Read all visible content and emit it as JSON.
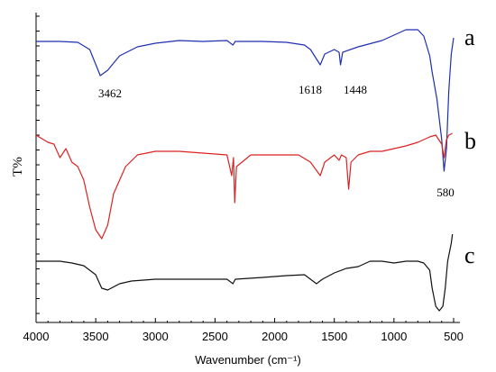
{
  "chart_data": {
    "type": "line",
    "title": "",
    "xlabel": "Wavenumber (cm⁻¹)",
    "ylabel": "T%",
    "xlim": [
      4000,
      500
    ],
    "x_ticks": [
      4000,
      3500,
      3000,
      2500,
      2000,
      1500,
      1000,
      500
    ],
    "grid": false,
    "legend": "none",
    "colors": {
      "a": "#1f2fb0",
      "b": "#dd2222",
      "c": "#111111"
    },
    "series": [
      {
        "name": "a",
        "baseline": 46,
        "points": [
          [
            4000,
            46
          ],
          [
            3800,
            46
          ],
          [
            3650,
            47
          ],
          [
            3550,
            55
          ],
          [
            3462,
            84
          ],
          [
            3400,
            78
          ],
          [
            3300,
            62
          ],
          [
            3150,
            52
          ],
          [
            3000,
            48
          ],
          [
            2800,
            45
          ],
          [
            2600,
            46
          ],
          [
            2400,
            45
          ],
          [
            2350,
            50
          ],
          [
            2330,
            46
          ],
          [
            2100,
            46
          ],
          [
            1900,
            47
          ],
          [
            1750,
            50
          ],
          [
            1700,
            55
          ],
          [
            1618,
            72
          ],
          [
            1580,
            60
          ],
          [
            1500,
            55
          ],
          [
            1460,
            58
          ],
          [
            1448,
            72
          ],
          [
            1430,
            58
          ],
          [
            1300,
            52
          ],
          [
            1100,
            45
          ],
          [
            900,
            33
          ],
          [
            800,
            33
          ],
          [
            750,
            40
          ],
          [
            700,
            62
          ],
          [
            680,
            80
          ],
          [
            640,
            110
          ],
          [
            600,
            155
          ],
          [
            580,
            190
          ],
          [
            560,
            165
          ],
          [
            540,
            100
          ],
          [
            520,
            60
          ],
          [
            500,
            42
          ]
        ],
        "annotations": [
          {
            "x": 3462,
            "label": "3462"
          },
          {
            "x": 1618,
            "label": "1618"
          },
          {
            "x": 1448,
            "label": "1448"
          }
        ]
      },
      {
        "name": "b",
        "baseline": 160,
        "points": [
          [
            4000,
            150
          ],
          [
            3900,
            158
          ],
          [
            3850,
            160
          ],
          [
            3800,
            175
          ],
          [
            3750,
            165
          ],
          [
            3700,
            180
          ],
          [
            3650,
            185
          ],
          [
            3600,
            200
          ],
          [
            3550,
            230
          ],
          [
            3500,
            255
          ],
          [
            3450,
            265
          ],
          [
            3400,
            250
          ],
          [
            3350,
            215
          ],
          [
            3250,
            185
          ],
          [
            3150,
            172
          ],
          [
            3000,
            168
          ],
          [
            2800,
            168
          ],
          [
            2600,
            170
          ],
          [
            2400,
            172
          ],
          [
            2360,
            195
          ],
          [
            2345,
            175
          ],
          [
            2335,
            225
          ],
          [
            2320,
            185
          ],
          [
            2200,
            172
          ],
          [
            2000,
            172
          ],
          [
            1800,
            172
          ],
          [
            1700,
            180
          ],
          [
            1618,
            195
          ],
          [
            1580,
            180
          ],
          [
            1500,
            172
          ],
          [
            1460,
            178
          ],
          [
            1440,
            172
          ],
          [
            1400,
            175
          ],
          [
            1380,
            210
          ],
          [
            1360,
            180
          ],
          [
            1300,
            172
          ],
          [
            1200,
            168
          ],
          [
            1100,
            168
          ],
          [
            1000,
            165
          ],
          [
            900,
            162
          ],
          [
            800,
            158
          ],
          [
            700,
            152
          ],
          [
            650,
            150
          ],
          [
            600,
            160
          ],
          [
            580,
            175
          ],
          [
            560,
            155
          ],
          [
            540,
            150
          ],
          [
            510,
            148
          ]
        ],
        "annotations": [
          {
            "x": 580,
            "label": "580"
          }
        ]
      },
      {
        "name": "c",
        "baseline": 290,
        "points": [
          [
            4000,
            290
          ],
          [
            3800,
            290
          ],
          [
            3700,
            292
          ],
          [
            3600,
            295
          ],
          [
            3500,
            305
          ],
          [
            3450,
            320
          ],
          [
            3400,
            322
          ],
          [
            3300,
            315
          ],
          [
            3200,
            312
          ],
          [
            3000,
            310
          ],
          [
            2800,
            310
          ],
          [
            2600,
            310
          ],
          [
            2400,
            310
          ],
          [
            2350,
            315
          ],
          [
            2330,
            310
          ],
          [
            2100,
            308
          ],
          [
            1900,
            306
          ],
          [
            1750,
            305
          ],
          [
            1700,
            310
          ],
          [
            1650,
            315
          ],
          [
            1600,
            310
          ],
          [
            1500,
            303
          ],
          [
            1400,
            298
          ],
          [
            1300,
            296
          ],
          [
            1200,
            290
          ],
          [
            1100,
            290
          ],
          [
            1000,
            292
          ],
          [
            900,
            290
          ],
          [
            800,
            290
          ],
          [
            750,
            292
          ],
          [
            700,
            300
          ],
          [
            680,
            320
          ],
          [
            650,
            340
          ],
          [
            620,
            345
          ],
          [
            590,
            340
          ],
          [
            570,
            320
          ],
          [
            550,
            290
          ],
          [
            520,
            270
          ],
          [
            510,
            260
          ]
        ]
      }
    ]
  },
  "series_labels": [
    "a",
    "b",
    "c"
  ]
}
